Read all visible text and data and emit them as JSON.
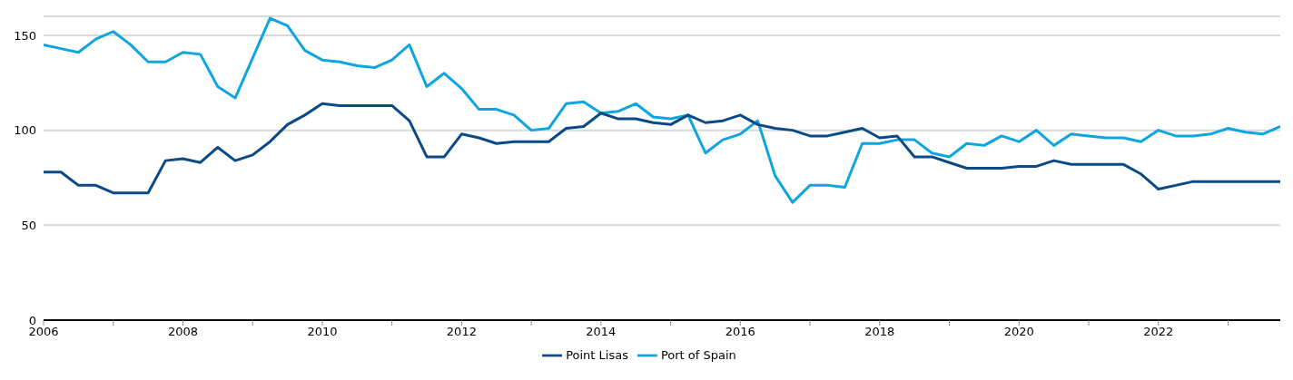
{
  "chart_data": {
    "type": "line",
    "x": [
      2006,
      2006.25,
      2006.5,
      2006.75,
      2007,
      2007.25,
      2007.5,
      2007.75,
      2008,
      2008.25,
      2008.5,
      2008.75,
      2009,
      2009.25,
      2009.5,
      2009.75,
      2010,
      2010.25,
      2010.5,
      2010.75,
      2011,
      2011.25,
      2011.5,
      2011.75,
      2012,
      2012.25,
      2012.5,
      2012.75,
      2013,
      2013.25,
      2013.5,
      2013.75,
      2014,
      2014.25,
      2014.5,
      2014.75,
      2015,
      2015.25,
      2015.5,
      2015.75,
      2016,
      2016.25,
      2016.5,
      2016.75,
      2017,
      2017.25,
      2017.5,
      2017.75,
      2018,
      2018.25,
      2018.5,
      2018.75,
      2019,
      2019.25,
      2019.5,
      2019.75,
      2020,
      2020.25,
      2020.5,
      2020.75,
      2021,
      2021.25,
      2021.5,
      2021.75,
      2022,
      2022.25,
      2022.5,
      2022.75,
      2023,
      2023.25,
      2023.5,
      2023.75
    ],
    "series": [
      {
        "name": "Port of Spain",
        "color": "#0ea5e0",
        "values": [
          145,
          143,
          141,
          148,
          152,
          145,
          136,
          136,
          141,
          140,
          123,
          117,
          138,
          159,
          155,
          142,
          137,
          136,
          134,
          133,
          137,
          145,
          123,
          130,
          122,
          111,
          111,
          108,
          100,
          101,
          114,
          115,
          109,
          110,
          114,
          107,
          106,
          108,
          88,
          95,
          98,
          105,
          76,
          62,
          71,
          71,
          70,
          93,
          93,
          95,
          95,
          88,
          86,
          93,
          92,
          97,
          94,
          100,
          92,
          98,
          97,
          96,
          96,
          94,
          100,
          97,
          97,
          98,
          101,
          99,
          98,
          102
        ]
      },
      {
        "name": "Point Lisas",
        "color": "#0b4a87",
        "values": [
          78,
          78,
          71,
          71,
          67,
          67,
          67,
          84,
          85,
          83,
          91,
          84,
          87,
          94,
          103,
          108,
          114,
          113,
          113,
          113,
          113,
          105,
          86,
          86,
          98,
          96,
          93,
          94,
          94,
          94,
          101,
          102,
          109,
          106,
          106,
          104,
          103,
          108,
          104,
          105,
          108,
          103,
          101,
          100,
          97,
          97,
          99,
          101,
          96,
          97,
          86,
          86,
          83,
          80,
          80,
          80,
          81,
          81,
          84,
          82,
          82,
          82,
          82,
          77,
          69,
          71,
          73,
          73,
          73,
          73,
          73,
          73
        ]
      }
    ],
    "xlim": [
      2006,
      2023.75
    ],
    "xticks": [
      2006,
      {
        "value": 2007,
        "label": null
      },
      2008,
      {
        "value": 2009,
        "label": null
      },
      2010,
      {
        "value": 2011,
        "label": null
      },
      2012,
      {
        "value": 2013,
        "label": null
      },
      2014,
      {
        "value": 2015,
        "label": null
      },
      2016,
      {
        "value": 2017,
        "label": null
      },
      2018,
      {
        "value": 2019,
        "label": null
      },
      2020,
      {
        "value": 2021,
        "label": null
      },
      2022,
      {
        "value": 2023,
        "label": null
      }
    ],
    "ylim": [
      0,
      160
    ],
    "yticks": [
      0,
      50,
      100,
      150
    ],
    "grid": "y",
    "legend": "bottom",
    "marker": "none",
    "line_style": "solid"
  }
}
